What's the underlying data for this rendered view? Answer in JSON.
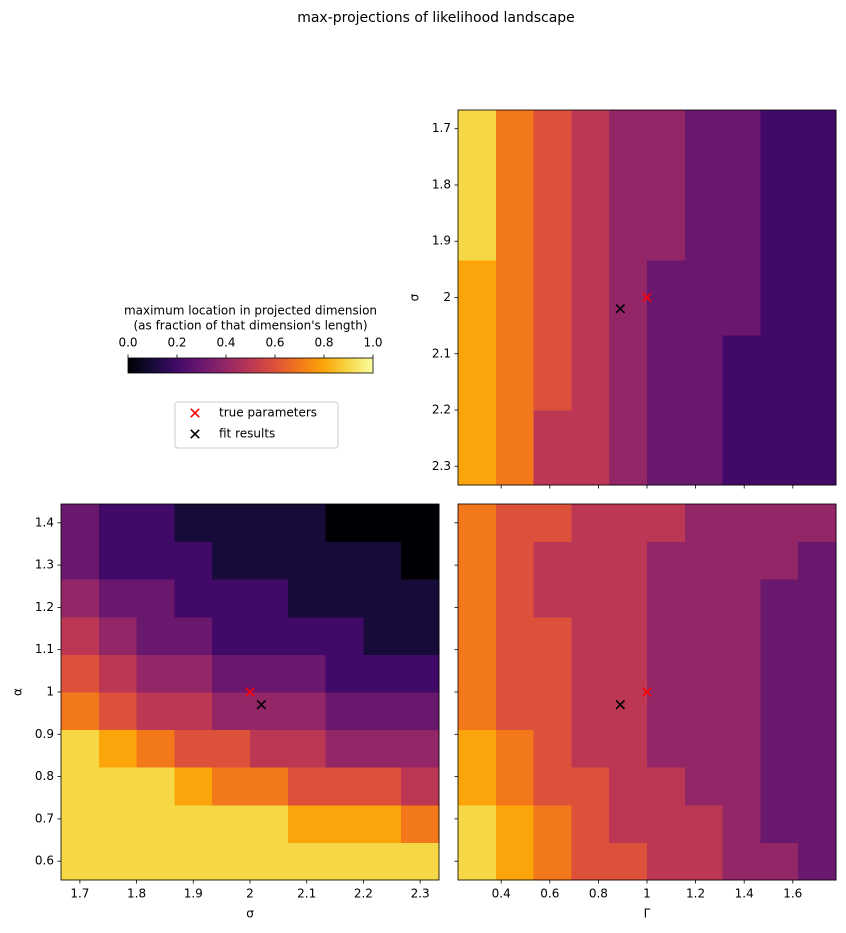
{
  "title": "max-projections of likelihood landscape",
  "colorbar": {
    "colormap": "inferno",
    "lim": [
      0,
      1
    ],
    "label": [
      "maximum location in projected dimension",
      "(as fraction of that dimension's length)"
    ],
    "ticks": [
      {
        "value": 0,
        "label": "0.0"
      },
      0.2,
      0.4,
      0.6,
      0.8,
      {
        "value": 1,
        "label": "1.0"
      }
    ]
  },
  "legend": {
    "entries": [
      {
        "name": "true parameters",
        "color": "#ff0000"
      },
      {
        "name": "fit results",
        "color": "#000000"
      }
    ]
  },
  "chart_data": [
    {
      "type": "heatmap",
      "ylabel": "σ",
      "show_xticklabels": false,
      "show_yticklabels": true,
      "xlim": [
        0.2222,
        1.7778
      ],
      "ylim": [
        2.3333,
        1.6667
      ],
      "xticks": [
        0.4,
        0.6,
        0.8,
        1.0,
        1.2,
        1.4,
        1.6
      ],
      "yticks": [
        1.7,
        1.8,
        1.9,
        2.0,
        2.1,
        2.2,
        2.3
      ],
      "z": [
        [
          0.8,
          0.7,
          0.5,
          0.5,
          0.4,
          0.3,
          0.3,
          0.2,
          0.2,
          0.2
        ],
        [
          0.8,
          0.7,
          0.5,
          0.5,
          0.4,
          0.3,
          0.3,
          0.2,
          0.2,
          0.2
        ],
        [
          0.8,
          0.7,
          0.6,
          0.5,
          0.4,
          0.3,
          0.3,
          0.2,
          0.2,
          0.2
        ],
        [
          0.8,
          0.7,
          0.6,
          0.5,
          0.4,
          0.3,
          0.3,
          0.2,
          0.2,
          0.2
        ],
        [
          0.8,
          0.7,
          0.6,
          0.5,
          0.4,
          0.3,
          0.3,
          0.3,
          0.2,
          0.2
        ],
        [
          0.8,
          0.7,
          0.6,
          0.5,
          0.4,
          0.3,
          0.3,
          0.3,
          0.2,
          0.2
        ],
        [
          0.9,
          0.7,
          0.6,
          0.5,
          0.4,
          0.4,
          0.3,
          0.3,
          0.2,
          0.2
        ],
        [
          0.9,
          0.7,
          0.6,
          0.5,
          0.4,
          0.4,
          0.3,
          0.3,
          0.2,
          0.2
        ],
        [
          0.9,
          0.7,
          0.6,
          0.5,
          0.4,
          0.4,
          0.3,
          0.3,
          0.2,
          0.2
        ],
        [
          0.9,
          0.7,
          0.6,
          0.5,
          0.4,
          0.4,
          0.3,
          0.3,
          0.2,
          0.2
        ]
      ],
      "markers": [
        [
          1.0,
          2.0
        ],
        [
          0.89,
          2.02
        ]
      ]
    },
    {
      "type": "heatmap",
      "xlabel": "σ",
      "ylabel": "α",
      "show_xticklabels": true,
      "show_yticklabels": true,
      "xlim": [
        1.6667,
        2.3333
      ],
      "ylim": [
        0.5556,
        1.4444
      ],
      "xticks": [
        1.7,
        1.8,
        1.9,
        2.0,
        2.1,
        2.2,
        2.3
      ],
      "yticks": [
        0.6,
        0.7,
        0.8,
        0.9,
        1.0,
        1.1,
        1.2,
        1.3,
        1.4
      ],
      "z": [
        [
          0.9,
          0.9,
          0.9,
          0.9,
          0.9,
          0.9,
          0.9,
          0.9,
          0.9,
          0.9
        ],
        [
          0.9,
          0.9,
          0.9,
          0.9,
          0.9,
          0.9,
          0.8,
          0.8,
          0.8,
          0.7
        ],
        [
          0.9,
          0.9,
          0.9,
          0.8,
          0.7,
          0.7,
          0.6,
          0.6,
          0.6,
          0.5
        ],
        [
          0.9,
          0.8,
          0.7,
          0.6,
          0.6,
          0.5,
          0.5,
          0.4,
          0.4,
          0.4
        ],
        [
          0.7,
          0.6,
          0.5,
          0.5,
          0.4,
          0.4,
          0.4,
          0.3,
          0.3,
          0.3
        ],
        [
          0.6,
          0.5,
          0.4,
          0.4,
          0.3,
          0.3,
          0.3,
          0.2,
          0.2,
          0.2
        ],
        [
          0.5,
          0.4,
          0.3,
          0.3,
          0.2,
          0.2,
          0.2,
          0.2,
          0.1,
          0.1
        ],
        [
          0.4,
          0.3,
          0.3,
          0.2,
          0.2,
          0.2,
          0.1,
          0.1,
          0.1,
          0.1
        ],
        [
          0.3,
          0.2,
          0.2,
          0.2,
          0.1,
          0.1,
          0.1,
          0.1,
          0.1,
          0.0
        ],
        [
          0.3,
          0.2,
          0.2,
          0.1,
          0.1,
          0.1,
          0.1,
          0.0,
          0.0,
          0.0
        ]
      ],
      "markers": [
        [
          2.0,
          1.0
        ],
        [
          2.02,
          0.97
        ]
      ]
    },
    {
      "type": "heatmap",
      "xlabel": "Γ",
      "show_xticklabels": true,
      "show_yticklabels": false,
      "xlim": [
        0.2222,
        1.7778
      ],
      "ylim": [
        0.5556,
        1.4444
      ],
      "xticks": [
        0.4,
        0.6,
        0.8,
        1.0,
        1.2,
        1.4,
        1.6
      ],
      "yticks": [
        0.6,
        0.7,
        0.8,
        0.9,
        1.0,
        1.1,
        1.2,
        1.3,
        1.4
      ],
      "z": [
        [
          0.9,
          0.8,
          0.7,
          0.6,
          0.6,
          0.5,
          0.5,
          0.4,
          0.4,
          0.3
        ],
        [
          0.9,
          0.8,
          0.7,
          0.6,
          0.5,
          0.5,
          0.5,
          0.4,
          0.3,
          0.3
        ],
        [
          0.8,
          0.7,
          0.6,
          0.6,
          0.5,
          0.5,
          0.4,
          0.4,
          0.3,
          0.3
        ],
        [
          0.8,
          0.7,
          0.6,
          0.5,
          0.5,
          0.4,
          0.4,
          0.4,
          0.3,
          0.3
        ],
        [
          0.7,
          0.6,
          0.6,
          0.5,
          0.5,
          0.4,
          0.4,
          0.4,
          0.3,
          0.3
        ],
        [
          0.7,
          0.6,
          0.6,
          0.5,
          0.5,
          0.4,
          0.4,
          0.4,
          0.3,
          0.3
        ],
        [
          0.7,
          0.6,
          0.6,
          0.5,
          0.5,
          0.4,
          0.4,
          0.4,
          0.3,
          0.3
        ],
        [
          0.7,
          0.6,
          0.5,
          0.5,
          0.5,
          0.4,
          0.4,
          0.4,
          0.3,
          0.3
        ],
        [
          0.7,
          0.6,
          0.5,
          0.5,
          0.5,
          0.4,
          0.4,
          0.4,
          0.4,
          0.3
        ],
        [
          0.7,
          0.6,
          0.6,
          0.5,
          0.5,
          0.5,
          0.4,
          0.4,
          0.4,
          0.4
        ]
      ],
      "markers": [
        [
          1.0,
          1.0
        ],
        [
          0.89,
          0.97
        ]
      ]
    }
  ]
}
